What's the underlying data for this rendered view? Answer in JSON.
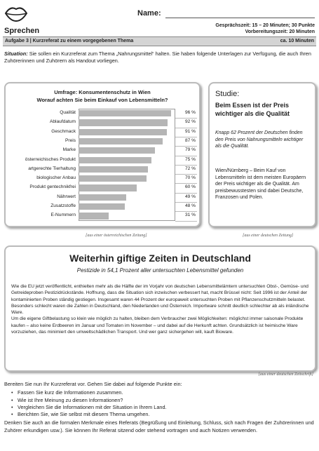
{
  "header": {
    "name_label": "Name:",
    "section": "Sprechen",
    "time": "Gesprächszeit: 15 – 20 Minuten; 30 Punkte",
    "prep": "Vorbereitungszeit: 20 Minuten",
    "task": "Aufgabe 3 | Kurzreferat zu einem vorgegebenen Thema",
    "duration": "ca. 10 Minuten"
  },
  "situation": {
    "label": "Situation:",
    "text": "Sie sollen ein Kurzreferat zum Thema „Nahrungsmittel“ halten. Sie haben folgende Unterlagen zur Verfügung, die auch Ihren Zuhörerinnen und Zuhörern als Handout vorliegen."
  },
  "survey": {
    "title": "Umfrage: Konsumentenschutz in Wien",
    "subtitle": "Worauf achten Sie beim Einkauf von Lebensmitteln?",
    "categories": [
      "Qualität",
      "Ablaufdatum",
      "Geschmack",
      "Preis",
      "Marke",
      "österreichisches Produkt",
      "artgerechte Tierhaltung",
      "biologischer Anbau",
      "Produkt gentechnikfrei",
      "Nährwert",
      "Zusatzstoffe",
      "E-Nummern"
    ],
    "values": [
      96,
      92,
      91,
      87,
      79,
      75,
      72,
      70,
      60,
      49,
      48,
      31
    ],
    "value_labels": [
      "96 %",
      "92 %",
      "91 %",
      "87 %",
      "79 %",
      "75 %",
      "72 %",
      "70 %",
      "60 %",
      "49 %",
      "48 %",
      "31 %"
    ],
    "xlim": [
      0,
      100
    ],
    "color": "#b5b5b5",
    "source": "[aus einer österreichischen Zeitung]"
  },
  "study": {
    "label": "Studie:",
    "headline": "Beim Essen ist der Preis wichtiger als die Qualität",
    "lead": "Knapp 62 Prozent der Deutschen finden den Preis von Nahrungsmitteln wichtiger als die Qualität.",
    "text": "Wien/Nürnberg – Beim Kauf von Lebensmitteln ist dem meisten Europäern der Preis wichtiger als die Qualität. Am preisbewusstesten sind dabei Deutsche, Franzosen und Polen.",
    "source": "[aus einer deutschen Zeitung]"
  },
  "article": {
    "title": "Weiterhin giftige Zeiten in Deutschland",
    "subtitle": "Pestizide in 54,1 Prozent aller untersuchten Lebensmittel gefunden",
    "paragraphs": [
      "Wie die EU jetzt veröffentlicht, enthielten mehr als die Hälfte der im Vorjahr von deutschen Lebensmittelämtern untersuchten Obst-, Gemüse- und Getreideproben Pestizidrückstände. Hoffnung, dass die Situation sich inzwischen verbessert hat, macht Brüssel nicht: Seit 1996 ist der Anteil der kontaminierten Proben ständig gestiegen. Insgesamt waren 44 Prozent der europaweit untersuchten Proben mit Pflanzenschutzmitteln belastet.",
      "Besonders schlecht waren die Zahlen in Deutschland, den Niederlanden und Österreich. Importware schnitt deutlich schlechter ab als inländische Ware.",
      "Um die eigene Giftbelastung so klein wie möglich zu halten, bleiben dem Verbraucher zwei Möglichkeiten: möglichst immer saisonale Produkte kaufen – also keine Erdbeeren im Januar und Tomaten im November – und dabei auf die Herkunft achten. Grundsätzlich ist heimische Ware vorzuziehen, das minimiert den umweltschädlichen Transport. Und wer ganz sichergehen will, kauft Bioware."
    ],
    "source": "[aus einer deutschen Zeitschrift]"
  },
  "instructions": {
    "intro": "Bereiten Sie nun Ihr Kurzreferat vor. Gehen Sie dabei auf folgende Punkte ein:",
    "points": [
      "Fassen Sie kurz die Informationen zusammen.",
      "Wie ist Ihre Meinung zu diesen Informationen?",
      "Vergleichen Sie die Informationen mit der Situation in Ihrem Land.",
      "Berichten Sie, wie Sie selbst mit diesem Thema umgehen."
    ],
    "closing": "Denken Sie auch an die formalen Merkmale eines Referats (Begrüßung und Einleitung, Schluss, sich nach Fragen der Zuhörerinnen und Zuhörer erkundigen usw.). Sie können Ihr Referat sitzend oder stehend vortragen und auch Notizen verwenden."
  }
}
